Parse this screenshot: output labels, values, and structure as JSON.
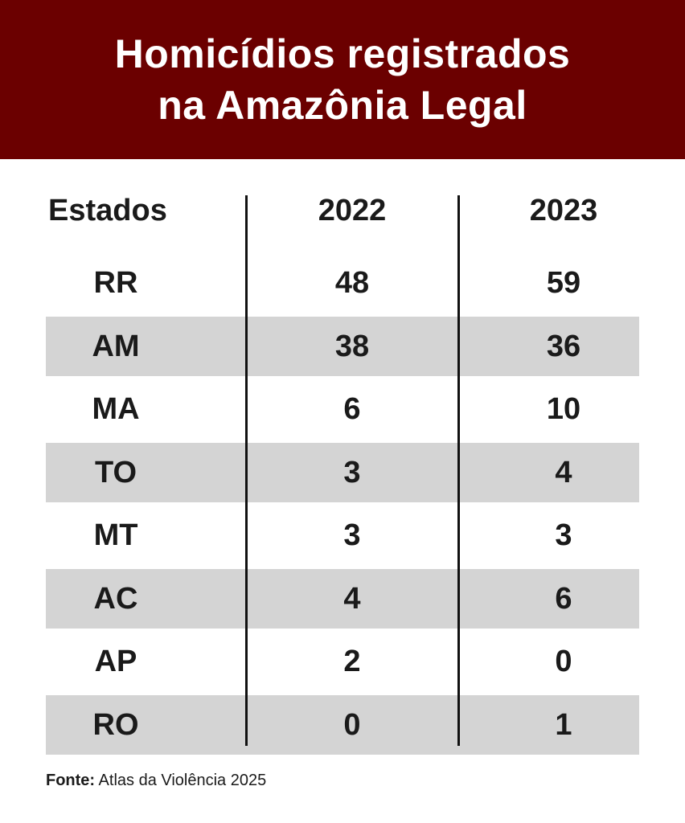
{
  "title_lines": [
    "Homicídios registrados",
    "na Amazônia Legal"
  ],
  "colors": {
    "header_bg": "#6b0000",
    "band": "#d4d4d4",
    "text": "#1a1a1a"
  },
  "chart_data": {
    "type": "table",
    "title": "Homicídios registrados na Amazônia Legal",
    "columns": [
      "Estados",
      "2022",
      "2023"
    ],
    "rows": [
      {
        "state": "RR",
        "v2022": "48",
        "v2023": "59"
      },
      {
        "state": "AM",
        "v2022": "38",
        "v2023": "36"
      },
      {
        "state": "MA",
        "v2022": "6",
        "v2023": "10"
      },
      {
        "state": "TO",
        "v2022": "3",
        "v2023": "4"
      },
      {
        "state": "MT",
        "v2022": "3",
        "v2023": "3"
      },
      {
        "state": "AC",
        "v2022": "4",
        "v2023": "6"
      },
      {
        "state": "AP",
        "v2022": "2",
        "v2023": "0"
      },
      {
        "state": "RO",
        "v2022": "0",
        "v2023": "1"
      }
    ]
  },
  "source": {
    "label": "Fonte:",
    "text": " Atlas da Violência 2025"
  }
}
